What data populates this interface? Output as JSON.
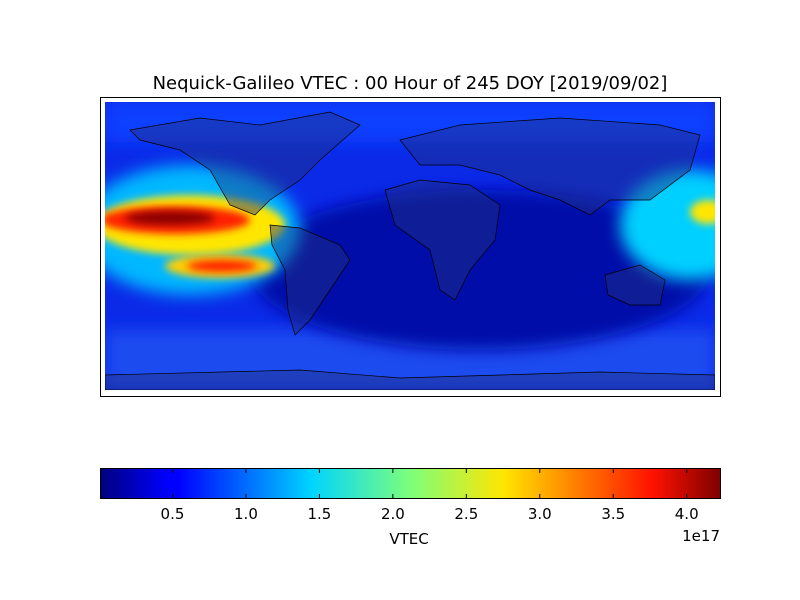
{
  "title": "Nequick-Galileo VTEC : 00 Hour of 245 DOY [2019/09/02]",
  "colorbar": {
    "label": "VTEC",
    "offset": "1e17",
    "lim": [
      0.01,
      4.23
    ],
    "ticks": [
      0.5,
      {
        "value": 1,
        "label": "1.0"
      },
      1.5,
      {
        "value": 2,
        "label": "2.0"
      },
      2.5,
      {
        "value": 3,
        "label": "3.0"
      },
      3.5,
      {
        "value": 4,
        "label": "4.0"
      }
    ]
  }
}
